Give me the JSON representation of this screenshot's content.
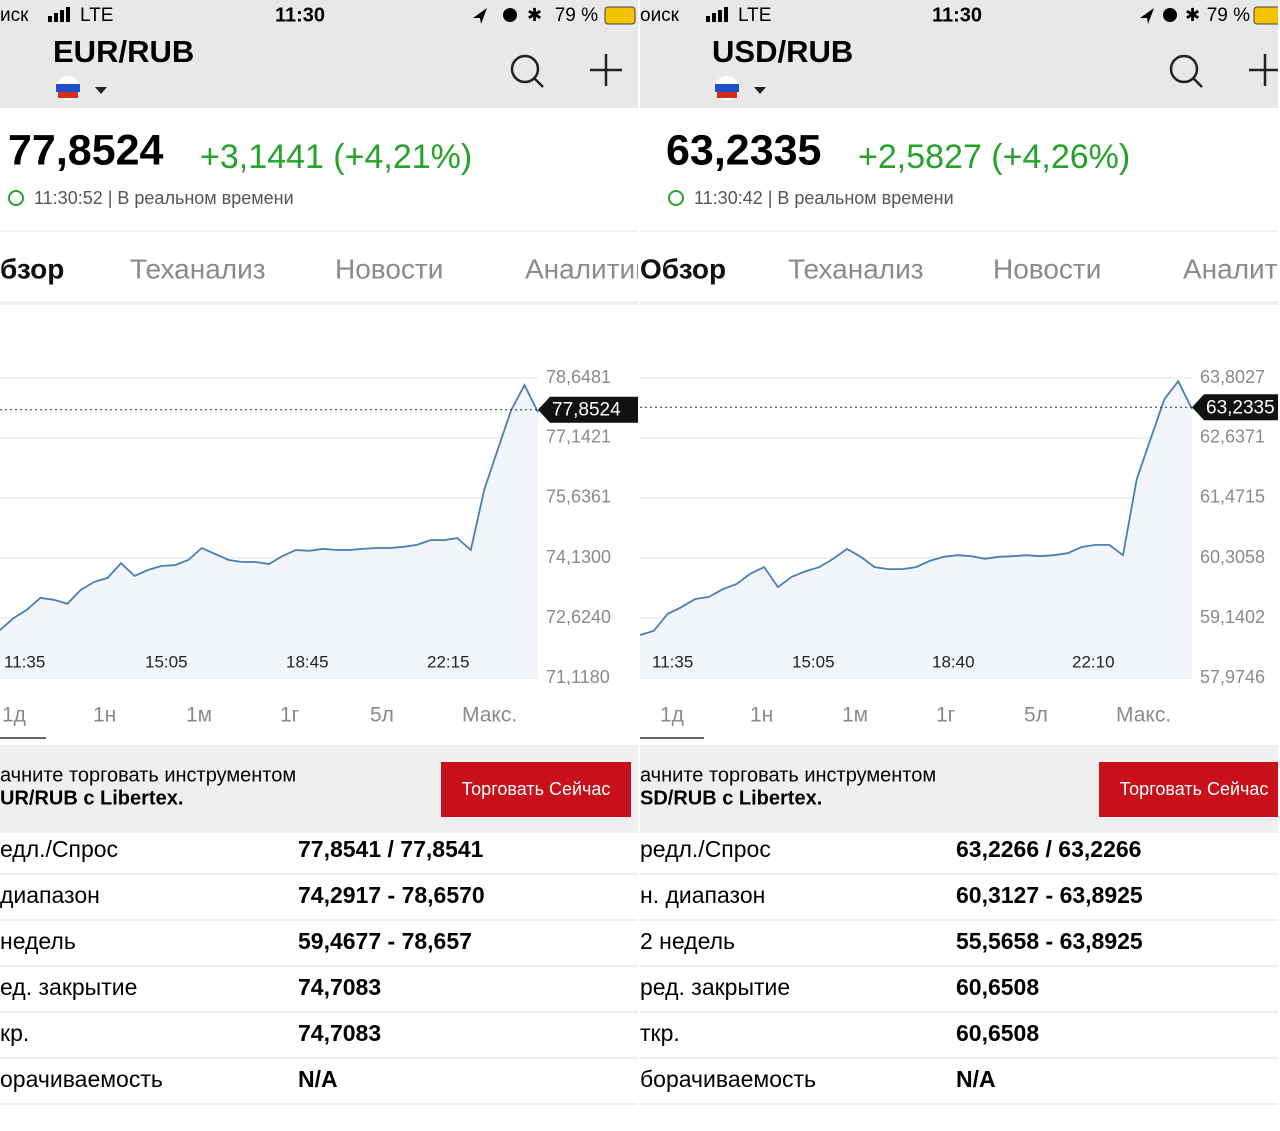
{
  "panels": [
    {
      "status": {
        "carrier": "иск",
        "network": "LTE",
        "time": "11:30",
        "battery": "79 %"
      },
      "header": {
        "title": "EUR/RUB"
      },
      "quote": {
        "price": "77,8524",
        "change": "+3,1441 (+4,21%)",
        "timestamp": "11:30:52 | В реальном времени"
      },
      "tabs": [
        "бзор",
        "Теханализ",
        "Новости",
        "Аналитик"
      ],
      "chart": {
        "type": "line",
        "values": [
          72.32,
          72.62,
          72.83,
          73.13,
          73.08,
          72.98,
          73.33,
          73.53,
          73.63,
          74.0,
          73.68,
          73.83,
          73.93,
          73.95,
          74.08,
          74.38,
          74.23,
          74.08,
          74.03,
          74.03,
          73.98,
          74.18,
          74.33,
          74.31,
          74.36,
          74.33,
          74.33,
          74.36,
          74.38,
          74.38,
          74.41,
          74.46,
          74.58,
          74.58,
          74.63,
          74.33,
          75.84,
          76.84,
          77.84,
          78.47,
          77.79
        ],
        "xlabels": [
          "11:35",
          "15:05",
          "18:45",
          "22:15"
        ],
        "ylim": [
          71.118,
          78.6481
        ],
        "yticks": [
          {
            "value": 78.6481,
            "label": "78,6481"
          },
          {
            "value": 77.1421,
            "label": "77,1421"
          },
          {
            "value": 75.6361,
            "label": "75,6361"
          },
          {
            "value": 74.13,
            "label": "74,1300"
          },
          {
            "value": 72.624,
            "label": "72,6240"
          },
          {
            "value": 71.118,
            "label": "71,1180"
          }
        ],
        "current": {
          "value": 77.8524,
          "label": "77,8524"
        },
        "color": "#4a7fb5",
        "grid": true
      },
      "ranges": [
        "1д",
        "1н",
        "1м",
        "1г",
        "5л",
        "Макс."
      ],
      "promo": {
        "line1": "ачните торговать инструментом",
        "line2": "UR/RUB с Libertex.",
        "button": "Торговать Сейчас"
      },
      "table": {
        "rows": [
          [
            "едл./Спрос",
            "77,8541 / 77,8541"
          ],
          [
            "диапазон",
            "74,2917 - 78,6570"
          ],
          [
            "недель",
            "59,4677 - 78,657"
          ],
          [
            "ед. закрытие",
            "74,7083"
          ],
          [
            "кр.",
            "74,7083"
          ],
          [
            "орачиваемость",
            "N/A"
          ]
        ]
      }
    },
    {
      "status": {
        "carrier": "оиск",
        "network": "LTE",
        "time": "11:30",
        "battery": "79 %"
      },
      "header": {
        "title": "USD/RUB"
      },
      "quote": {
        "price": "63,2335",
        "change": "+2,5827 (+4,26%)",
        "timestamp": "11:30:42 | В реальном времени"
      },
      "tabs": [
        "Обзор",
        "Теханализ",
        "Новости",
        "Аналити"
      ],
      "chart": {
        "type": "line",
        "values": [
          58.81,
          58.89,
          59.22,
          59.35,
          59.51,
          59.55,
          59.7,
          59.8,
          60.0,
          60.13,
          59.74,
          59.94,
          60.05,
          60.13,
          60.29,
          60.48,
          60.33,
          60.13,
          60.09,
          60.09,
          60.13,
          60.25,
          60.33,
          60.36,
          60.34,
          60.29,
          60.33,
          60.34,
          60.36,
          60.34,
          60.36,
          60.4,
          60.52,
          60.56,
          60.56,
          60.36,
          61.84,
          62.62,
          63.39,
          63.74,
          63.2
        ],
        "xlabels": [
          "11:35",
          "15:05",
          "18:40",
          "22:10"
        ],
        "ylim": [
          57.9746,
          63.8027
        ],
        "yticks": [
          {
            "value": 63.8027,
            "label": "63,8027"
          },
          {
            "value": 62.6371,
            "label": "62,6371"
          },
          {
            "value": 61.4715,
            "label": "61,4715"
          },
          {
            "value": 60.3058,
            "label": "60,3058"
          },
          {
            "value": 59.1402,
            "label": "59,1402"
          },
          {
            "value": 57.9746,
            "label": "57,9746"
          }
        ],
        "current": {
          "value": 63.2335,
          "label": "63,2335"
        },
        "color": "#4a7fb5",
        "grid": true
      },
      "ranges": [
        "1д",
        "1н",
        "1м",
        "1г",
        "5л",
        "Макс."
      ],
      "promo": {
        "line1": "ачните торговать инструментом",
        "line2": "SD/RUB с Libertex.",
        "button": "Торговать Сейчас"
      },
      "table": {
        "rows": [
          [
            "редл./Спрос",
            "63,2266 / 63,2266"
          ],
          [
            "н. диапазон",
            "60,3127 - 63,8925"
          ],
          [
            "2 недель",
            "55,5658 - 63,8925"
          ],
          [
            "ред. закрытие",
            "60,6508"
          ],
          [
            "ткр.",
            "60,6508"
          ],
          [
            "борачиваемость",
            "N/A"
          ]
        ]
      }
    }
  ]
}
